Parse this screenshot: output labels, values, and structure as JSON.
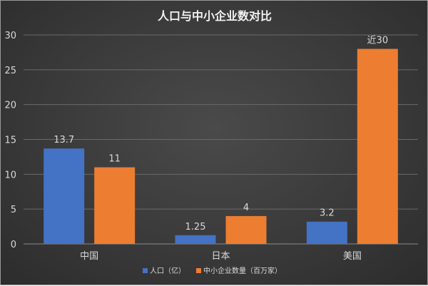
{
  "chart_data": {
    "type": "bar",
    "title": "人口与中小企业数对比",
    "categories": [
      "中国",
      "日本",
      "美国"
    ],
    "series": [
      {
        "name": "人口（亿）",
        "color": "#4472c4",
        "values": [
          13.7,
          1.25,
          3.2
        ],
        "labels": [
          "13.7",
          "1.25",
          "3.2"
        ]
      },
      {
        "name": "中小企业数量（百万家）",
        "color": "#ed7d31",
        "values": [
          11,
          4,
          28
        ],
        "labels": [
          "11",
          "4",
          "近30"
        ]
      }
    ],
    "ylim": [
      0,
      30
    ],
    "yticks": [
      0,
      5,
      10,
      15,
      20,
      25,
      30
    ],
    "grid": true,
    "legend_position": "bottom"
  }
}
